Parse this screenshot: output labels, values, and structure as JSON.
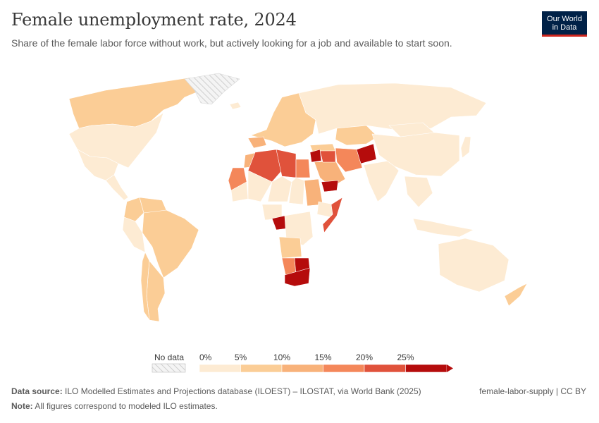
{
  "header": {
    "title": "Female unemployment rate, 2024",
    "subtitle": "Share of the female labor force without work, but actively looking for a job and available to start soon."
  },
  "logo": {
    "line1": "Our World",
    "line2": "in Data"
  },
  "legend": {
    "no_data_label": "No data",
    "ticks": [
      "0%",
      "5%",
      "10%",
      "15%",
      "20%",
      "25%"
    ],
    "colors": [
      "#fdebd3",
      "#fbcd96",
      "#f8b27a",
      "#f4875a",
      "#e0523b",
      "#b50c0c"
    ]
  },
  "footer": {
    "source_label": "Data source:",
    "source_text": "ILO Modelled Estimates and Projections database (ILOEST) – ILOSTAT, via World Bank (2025)",
    "note_label": "Note:",
    "note_text": "All figures correspond to modeled ILO estimates.",
    "credit": "female-labor-supply | CC BY"
  },
  "map_data": {
    "regions": [
      {
        "name": "Canada",
        "color": "#fbcd96"
      },
      {
        "name": "United States",
        "color": "#fdebd3"
      },
      {
        "name": "Mexico",
        "color": "#fdebd3"
      },
      {
        "name": "Central America",
        "color": "#fdebd3"
      },
      {
        "name": "Colombia",
        "color": "#fbcd96"
      },
      {
        "name": "Venezuela",
        "color": "#fbcd96"
      },
      {
        "name": "Brazil",
        "color": "#fbcd96"
      },
      {
        "name": "Peru",
        "color": "#fdebd3"
      },
      {
        "name": "Argentina",
        "color": "#fbcd96"
      },
      {
        "name": "Chile",
        "color": "#fbcd96"
      },
      {
        "name": "Greenland",
        "color": "nodata"
      },
      {
        "name": "Iceland",
        "color": "#fdebd3"
      },
      {
        "name": "Western Europe",
        "color": "#fbcd96"
      },
      {
        "name": "Spain",
        "color": "#f8b27a"
      },
      {
        "name": "Russia",
        "color": "#fdebd3"
      },
      {
        "name": "Kazakhstan",
        "color": "#fbcd96"
      },
      {
        "name": "Turkey",
        "color": "#fbcd96"
      },
      {
        "name": "Morocco",
        "color": "#f8b27a"
      },
      {
        "name": "Algeria",
        "color": "#e0523b"
      },
      {
        "name": "Libya",
        "color": "#e0523b"
      },
      {
        "name": "Egypt",
        "color": "#f4875a"
      },
      {
        "name": "Mauritania",
        "color": "#fdebd3"
      },
      {
        "name": "Western Sahara",
        "color": "#f4875a"
      },
      {
        "name": "Mali",
        "color": "#fdebd3"
      },
      {
        "name": "Niger",
        "color": "#fdebd3"
      },
      {
        "name": "Chad",
        "color": "#fdebd3"
      },
      {
        "name": "Sudan",
        "color": "#f8b27a"
      },
      {
        "name": "Ethiopia",
        "color": "#fdebd3"
      },
      {
        "name": "Somalia",
        "color": "#e0523b"
      },
      {
        "name": "Nigeria",
        "color": "#fdebd3"
      },
      {
        "name": "Gabon",
        "color": "#b50c0c"
      },
      {
        "name": "DR Congo",
        "color": "#fdebd3"
      },
      {
        "name": "Angola",
        "color": "#fbcd96"
      },
      {
        "name": "Namibia",
        "color": "#f4875a"
      },
      {
        "name": "Botswana",
        "color": "#b50c0c"
      },
      {
        "name": "South Africa",
        "color": "#b50c0c"
      },
      {
        "name": "Saudi Arabia",
        "color": "#f8b27a"
      },
      {
        "name": "Yemen",
        "color": "#b50c0c"
      },
      {
        "name": "Iraq",
        "color": "#e0523b"
      },
      {
        "name": "Syria",
        "color": "#b50c0c"
      },
      {
        "name": "Iran",
        "color": "#f4875a"
      },
      {
        "name": "Afghanistan",
        "color": "#b50c0c"
      },
      {
        "name": "India",
        "color": "#fdebd3"
      },
      {
        "name": "China",
        "color": "#fdebd3"
      },
      {
        "name": "Mongolia",
        "color": "#fdebd3"
      },
      {
        "name": "Japan",
        "color": "#fdebd3"
      },
      {
        "name": "Southeast Asia",
        "color": "#fdebd3"
      },
      {
        "name": "Indonesia",
        "color": "#fdebd3"
      },
      {
        "name": "Australia",
        "color": "#fdebd3"
      },
      {
        "name": "New Zealand",
        "color": "#fbcd96"
      }
    ]
  }
}
